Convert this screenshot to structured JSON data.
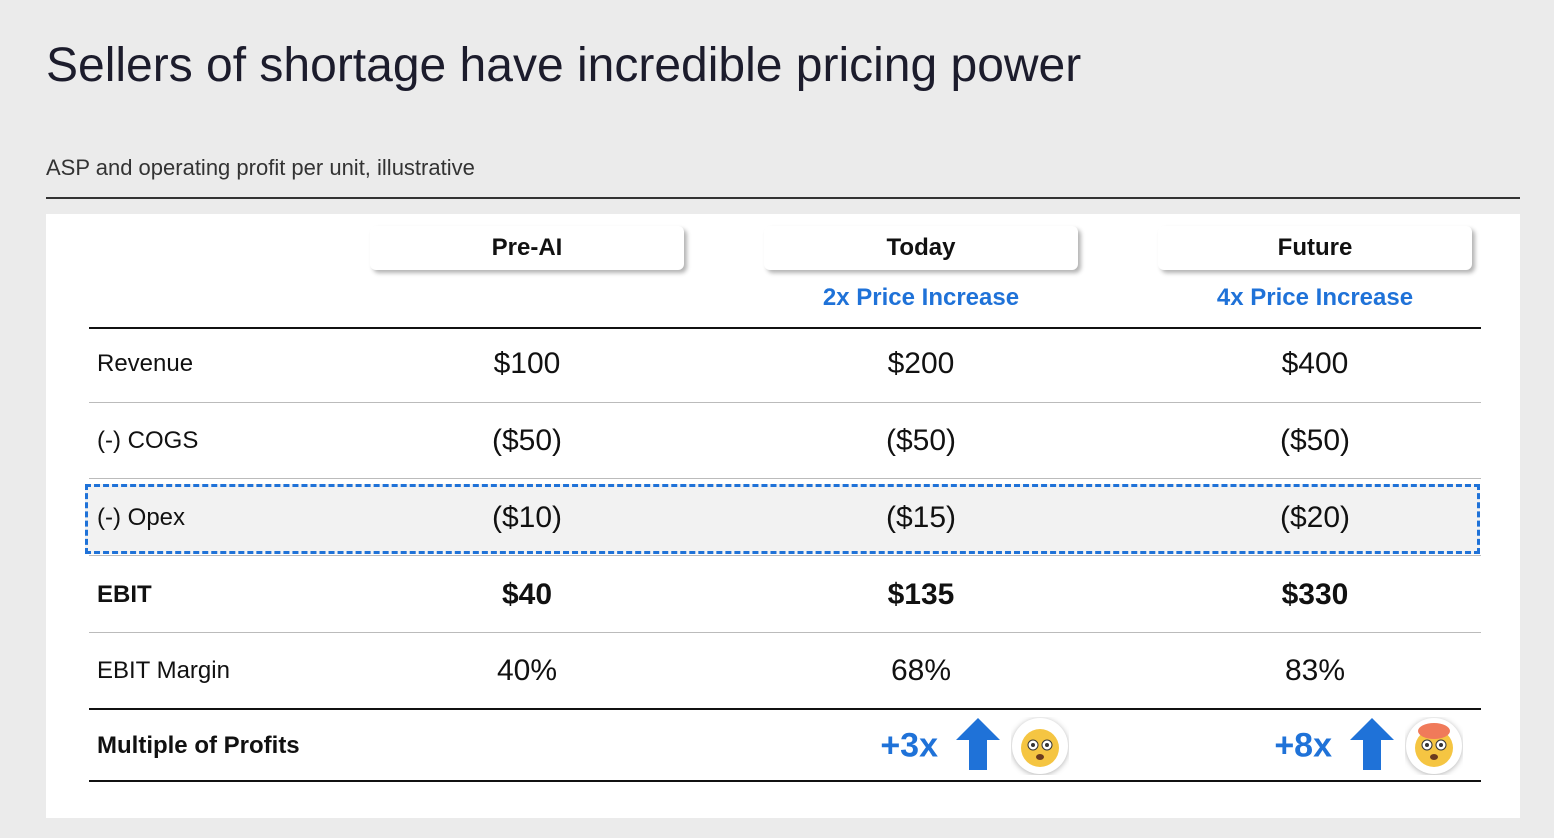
{
  "title": "Sellers of shortage have incredible pricing power",
  "subtitle": "ASP and operating profit per unit, illustrative",
  "table": {
    "columns": [
      {
        "name": "Pre-AI"
      },
      {
        "name": "Today",
        "note": "2x Price Increase"
      },
      {
        "name": "Future",
        "note": "4x Price Increase"
      }
    ],
    "rows": [
      {
        "label": "Revenue",
        "cells": [
          "$100",
          "$200",
          "$400"
        ]
      },
      {
        "label": "(-) COGS",
        "cells": [
          "($50)",
          "($50)",
          "($50)"
        ]
      },
      {
        "label": "(-) Opex",
        "cells": [
          "($10)",
          "($15)",
          "($20)"
        ],
        "highlighted": true
      },
      {
        "label": "EBIT",
        "cells": [
          "$40",
          "$135",
          "$330"
        ],
        "bold": true
      },
      {
        "label": "EBIT Margin",
        "cells": [
          "40%",
          "68%",
          "83%"
        ]
      }
    ],
    "multiple": {
      "label": "Multiple of Profits",
      "cells": [
        null,
        "+3x",
        "+8x"
      ]
    }
  }
}
